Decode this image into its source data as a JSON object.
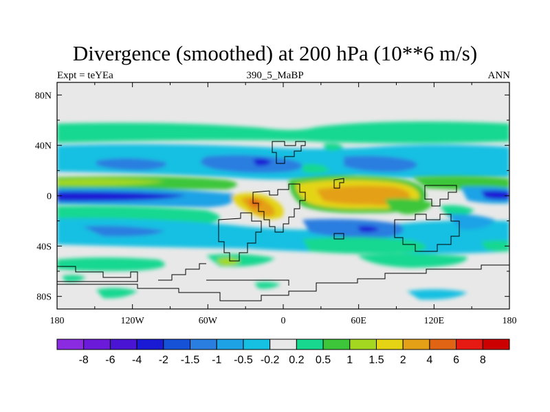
{
  "chart_data": {
    "type": "filled-contour-map",
    "title": "Divergence (smoothed) at 200 hPa (10**6 m/s)",
    "left_label": "Expt = teYEa",
    "center_label": "390_5_MaBP",
    "right_label": "ANN",
    "x": {
      "range": [
        -180,
        180
      ],
      "ticks": [
        {
          "value": -180,
          "label": "180"
        },
        {
          "value": -120,
          "label": "120W"
        },
        {
          "value": -60,
          "label": "60W"
        },
        {
          "value": 0,
          "label": "0"
        },
        {
          "value": 60,
          "label": "60E"
        },
        {
          "value": 120,
          "label": "120E"
        },
        {
          "value": 180,
          "label": "180"
        }
      ]
    },
    "y": {
      "range": [
        -90,
        90
      ],
      "ticks": [
        {
          "value": 80,
          "label": "80N"
        },
        {
          "value": 40,
          "label": "40N"
        },
        {
          "value": 0,
          "label": "0"
        },
        {
          "value": -40,
          "label": "40S"
        },
        {
          "value": -80,
          "label": "80S"
        }
      ]
    },
    "colorbar": {
      "labels": [
        "-8",
        "-6",
        "-4",
        "-2",
        "-1.5",
        "-1",
        "-0.5",
        "-0.2",
        "0.2",
        "0.5",
        "1",
        "1.5",
        "2",
        "4",
        "6",
        "8"
      ],
      "colors": [
        "#8a2be2",
        "#6a1ad8",
        "#4a14d4",
        "#1a1ad4",
        "#1652d8",
        "#2a7ee0",
        "#1ea2e6",
        "#16c0e2",
        "#e8e8e8",
        "#18d890",
        "#3ec63a",
        "#a4d820",
        "#e4d414",
        "#e4a016",
        "#e06414",
        "#e61a12",
        "#cc0000"
      ]
    },
    "features": [
      {
        "name": "extratropical-north-band",
        "value": 0.5,
        "lon": [
          -180,
          180
        ],
        "lat": [
          45,
          58
        ]
      },
      {
        "name": "north-convergence-band",
        "value": -1,
        "lon": [
          -180,
          180
        ],
        "lat": [
          18,
          42
        ]
      },
      {
        "name": "north-tropical-divergence",
        "value": 1,
        "lon": [
          -180,
          180
        ],
        "lat": [
          6,
          18
        ]
      },
      {
        "name": "equatorial-convergence",
        "value": -2,
        "lon": [
          -180,
          -20
        ],
        "lat": [
          -5,
          5
        ]
      },
      {
        "name": "indian-ocean-divergence",
        "value": 2,
        "lon": [
          10,
          120
        ],
        "lat": [
          -20,
          14
        ]
      },
      {
        "name": "south-atlantic-divergence",
        "value": 2,
        "lon": [
          -40,
          -5
        ],
        "lat": [
          -20,
          5
        ]
      },
      {
        "name": "south-convergence-band",
        "value": -1,
        "lon": [
          -180,
          180
        ],
        "lat": [
          -48,
          -15
        ]
      },
      {
        "name": "southern-divergence-patches",
        "value": 0.5,
        "lon": [
          -180,
          180
        ],
        "lat": [
          -65,
          -40
        ]
      }
    ]
  }
}
